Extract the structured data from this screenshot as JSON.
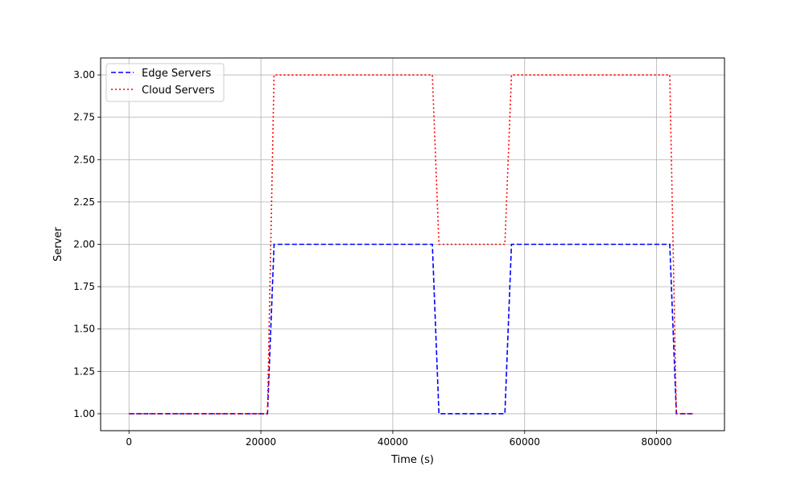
{
  "chart_data": {
    "type": "line",
    "title": "",
    "xlabel": "Time (s)",
    "ylabel": "Server",
    "xlim": [
      -4300,
      90300
    ],
    "ylim": [
      0.9,
      3.1
    ],
    "xticks": [
      0,
      20000,
      40000,
      60000,
      80000
    ],
    "xtick_labels": [
      "0",
      "20000",
      "40000",
      "60000",
      "80000"
    ],
    "yticks": [
      1.0,
      1.25,
      1.5,
      1.75,
      2.0,
      2.25,
      2.5,
      2.75,
      3.0
    ],
    "ytick_labels": [
      "1.00",
      "1.25",
      "1.50",
      "1.75",
      "2.00",
      "2.25",
      "2.50",
      "2.75",
      "3.00"
    ],
    "grid": true,
    "legend_position": "upper-left",
    "series": [
      {
        "name": "Edge Servers",
        "color": "#0000ff",
        "linestyle": "dashed",
        "x": [
          0,
          21000,
          22000,
          46000,
          47000,
          57000,
          58000,
          82000,
          83000,
          85500
        ],
        "y": [
          1,
          1,
          2,
          2,
          1,
          1,
          2,
          2,
          1,
          1
        ]
      },
      {
        "name": "Cloud Servers",
        "color": "#ff0000",
        "linestyle": "dotted",
        "x": [
          0,
          21000,
          22000,
          46000,
          47000,
          57000,
          58000,
          82000,
          83000,
          85500
        ],
        "y": [
          1,
          1,
          3,
          3,
          2,
          2,
          3,
          3,
          1,
          1
        ]
      }
    ]
  }
}
